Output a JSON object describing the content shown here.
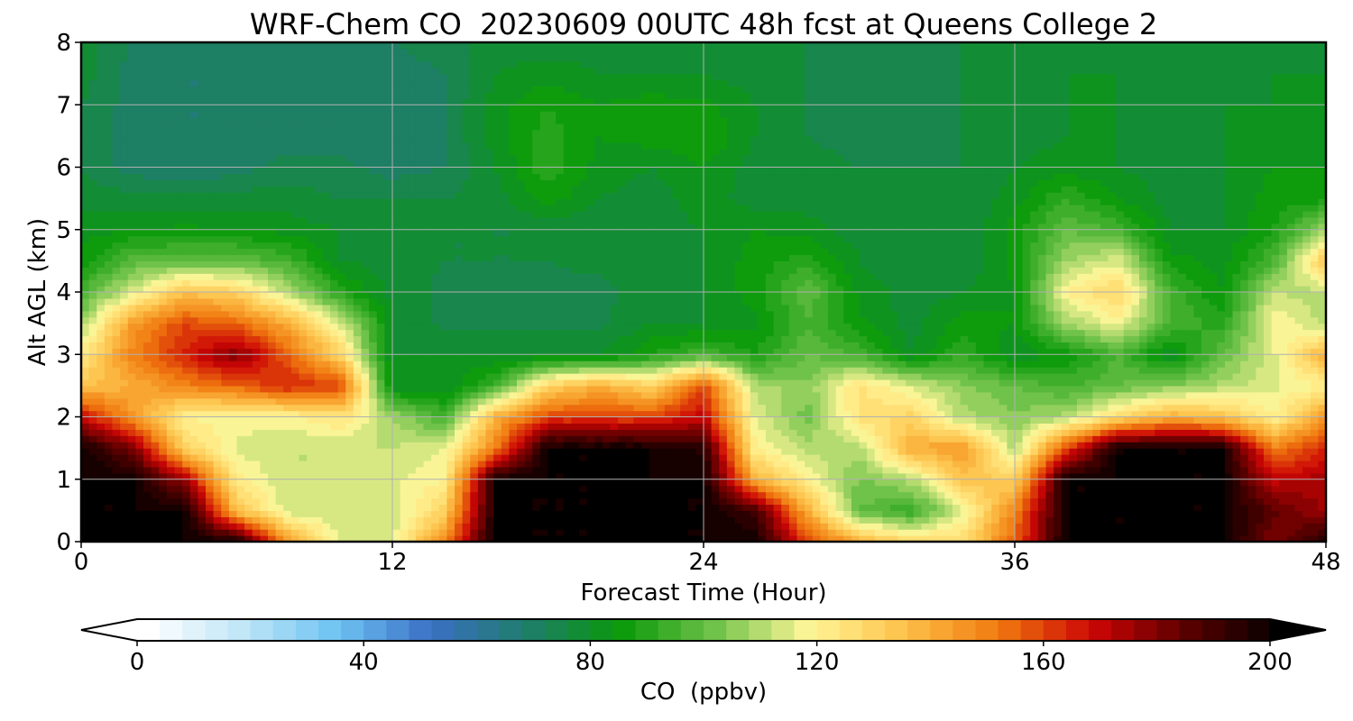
{
  "chart_data": {
    "type": "heatmap",
    "title": "WRF-Chem CO  20230609 00UTC 48h fcst at Queens College 2",
    "xlabel": "Forecast Time (Hour)",
    "ylabel": "Alt AGL (km)",
    "x_ticks": [
      0,
      12,
      24,
      36,
      48
    ],
    "y_ticks": [
      0,
      1,
      2,
      3,
      4,
      5,
      6,
      7,
      8
    ],
    "xlim": [
      0,
      48
    ],
    "ylim": [
      0,
      8
    ],
    "grid": true,
    "colorbar": {
      "label": "CO  (ppbv)",
      "ticks": [
        0,
        40,
        80,
        120,
        160,
        200
      ],
      "range": [
        0,
        200
      ],
      "extend": "both",
      "colors": [
        "#ffffff",
        "#bfe6f7",
        "#6ec3f2",
        "#3a6fc4",
        "#1f7d6c",
        "#0a9a0a",
        "#6fc24a",
        "#fff799",
        "#fdc24a",
        "#f07a0f",
        "#cc0505",
        "#5a0000",
        "#000000"
      ]
    },
    "x_hours": [
      0,
      2,
      4,
      6,
      8,
      10,
      12,
      14,
      16,
      18,
      20,
      22,
      24,
      26,
      28,
      30,
      32,
      34,
      36,
      38,
      40,
      42,
      44,
      46,
      48
    ],
    "y_km": [
      0,
      0.5,
      1,
      1.5,
      2,
      2.5,
      3,
      3.5,
      4,
      4.5,
      5,
      5.5,
      6,
      6.5,
      7,
      7.5,
      8
    ],
    "co_ppbv": [
      [
        200,
        200,
        200,
        200,
        145,
        115,
        115,
        150,
        200,
        200,
        200,
        200,
        200,
        200,
        160,
        140,
        128,
        128,
        155,
        200,
        200,
        200,
        200,
        180,
        195
      ],
      [
        200,
        200,
        200,
        135,
        113,
        112,
        112,
        130,
        200,
        200,
        200,
        200,
        200,
        190,
        140,
        100,
        92,
        115,
        150,
        200,
        200,
        200,
        200,
        185,
        175
      ],
      [
        200,
        200,
        175,
        122,
        112,
        112,
        115,
        120,
        200,
        200,
        200,
        200,
        200,
        140,
        120,
        103,
        110,
        135,
        130,
        200,
        200,
        200,
        200,
        170,
        175
      ],
      [
        200,
        180,
        130,
        115,
        112,
        112,
        112,
        116,
        150,
        200,
        200,
        200,
        195,
        120,
        110,
        110,
        140,
        145,
        110,
        160,
        200,
        200,
        200,
        150,
        165
      ],
      [
        170,
        145,
        120,
        118,
        118,
        125,
        108,
        95,
        140,
        160,
        160,
        160,
        170,
        115,
        102,
        125,
        130,
        110,
        105,
        110,
        128,
        140,
        135,
        120,
        145
      ],
      [
        135,
        140,
        150,
        155,
        165,
        160,
        80,
        80,
        95,
        130,
        140,
        130,
        160,
        110,
        105,
        125,
        115,
        105,
        100,
        95,
        100,
        105,
        110,
        115,
        120
      ],
      [
        122,
        150,
        165,
        180,
        155,
        130,
        80,
        80,
        80,
        80,
        80,
        88,
        95,
        88,
        100,
        95,
        80,
        92,
        80,
        85,
        96,
        80,
        100,
        115,
        140
      ],
      [
        108,
        145,
        160,
        155,
        140,
        115,
        80,
        75,
        75,
        75,
        75,
        80,
        80,
        83,
        95,
        85,
        78,
        86,
        84,
        108,
        118,
        95,
        90,
        120,
        110
      ],
      [
        95,
        115,
        135,
        130,
        110,
        90,
        78,
        75,
        75,
        75,
        75,
        78,
        80,
        86,
        100,
        83,
        78,
        80,
        84,
        120,
        130,
        95,
        84,
        112,
        110
      ],
      [
        85,
        98,
        100,
        100,
        95,
        80,
        78,
        76,
        76,
        76,
        77,
        78,
        80,
        86,
        90,
        80,
        76,
        76,
        85,
        108,
        115,
        86,
        82,
        96,
        135
      ],
      [
        82,
        84,
        85,
        84,
        82,
        80,
        78,
        76,
        76,
        76,
        77,
        78,
        80,
        84,
        82,
        78,
        76,
        76,
        86,
        100,
        95,
        80,
        80,
        88,
        108
      ],
      [
        78,
        78,
        77,
        78,
        78,
        76,
        76,
        76,
        78,
        86,
        80,
        78,
        82,
        78,
        78,
        77,
        76,
        76,
        82,
        92,
        84,
        78,
        80,
        86,
        86
      ],
      [
        76,
        70,
        68,
        70,
        74,
        73,
        70,
        72,
        80,
        91,
        82,
        80,
        84,
        78,
        77,
        76,
        76,
        76,
        80,
        82,
        80,
        78,
        80,
        84,
        84
      ],
      [
        76,
        70,
        68,
        68,
        70,
        70,
        70,
        72,
        82,
        90,
        84,
        86,
        88,
        80,
        76,
        75,
        75,
        76,
        78,
        80,
        80,
        77,
        80,
        82,
        82
      ],
      [
        76,
        70,
        68,
        68,
        70,
        70,
        70,
        72,
        82,
        88,
        84,
        86,
        85,
        80,
        76,
        75,
        75,
        76,
        78,
        80,
        80,
        77,
        80,
        80,
        84
      ],
      [
        78,
        70,
        68,
        68,
        70,
        70,
        70,
        72,
        80,
        82,
        80,
        80,
        80,
        78,
        76,
        75,
        75,
        76,
        78,
        80,
        80,
        77,
        78,
        80,
        80
      ],
      [
        78,
        72,
        70,
        70,
        72,
        72,
        72,
        74,
        78,
        78,
        78,
        78,
        78,
        77,
        76,
        75,
        75,
        76,
        78,
        78,
        78,
        77,
        78,
        78,
        78
      ]
    ]
  }
}
